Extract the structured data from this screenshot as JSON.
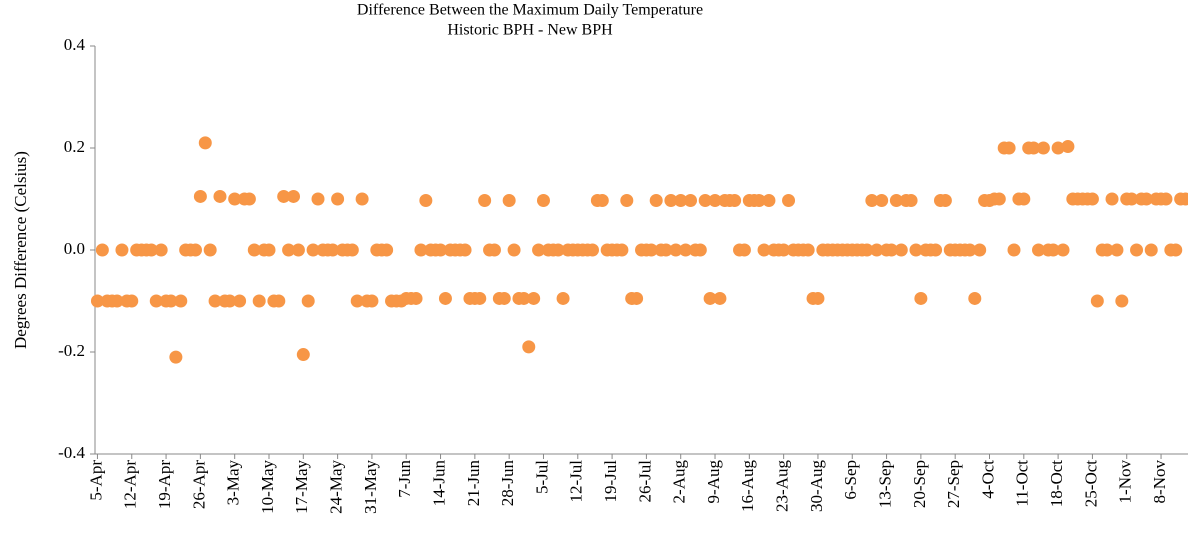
{
  "chart_data": {
    "type": "scatter",
    "title": "Difference Between the Maximum Daily Temperature",
    "subtitle": "Historic BPH - New BPH",
    "y_label": "Degrees Difference (Celsius)",
    "color": "#f79646",
    "ylim": [
      -0.4,
      0.4
    ],
    "yticks": [
      -0.4,
      -0.2,
      {
        "value": 0,
        "label": "0.0"
      },
      0.2,
      0.4
    ],
    "categories": [
      "5-Apr",
      null,
      null,
      null,
      null,
      null,
      null,
      "12-Apr",
      null,
      null,
      null,
      null,
      null,
      null,
      "19-Apr",
      null,
      null,
      null,
      null,
      null,
      null,
      "26-Apr",
      null,
      null,
      null,
      null,
      null,
      null,
      "3-May",
      null,
      null,
      null,
      null,
      null,
      null,
      "10-May",
      null,
      null,
      null,
      null,
      null,
      null,
      "17-May",
      null,
      null,
      null,
      null,
      null,
      null,
      "24-May",
      null,
      null,
      null,
      null,
      null,
      null,
      "31-May",
      null,
      null,
      null,
      null,
      null,
      null,
      "7-Jun",
      null,
      null,
      null,
      null,
      null,
      null,
      "14-Jun",
      null,
      null,
      null,
      null,
      null,
      null,
      "21-Jun",
      null,
      null,
      null,
      null,
      null,
      null,
      "28-Jun",
      null,
      null,
      null,
      null,
      null,
      null,
      "5-Jul",
      null,
      null,
      null,
      null,
      null,
      null,
      "12-Jul",
      null,
      null,
      null,
      null,
      null,
      null,
      "19-Jul",
      null,
      null,
      null,
      null,
      null,
      null,
      "26-Jul",
      null,
      null,
      null,
      null,
      null,
      null,
      "2-Aug",
      null,
      null,
      null,
      null,
      null,
      null,
      "9-Aug",
      null,
      null,
      null,
      null,
      null,
      null,
      "16-Aug",
      null,
      null,
      null,
      null,
      null,
      null,
      "23-Aug",
      null,
      null,
      null,
      null,
      null,
      null,
      "30-Aug",
      null,
      null,
      null,
      null,
      null,
      null,
      "6-Sep",
      null,
      null,
      null,
      null,
      null,
      null,
      "13-Sep",
      null,
      null,
      null,
      null,
      null,
      null,
      "20-Sep",
      null,
      null,
      null,
      null,
      null,
      null,
      "27-Sep",
      null,
      null,
      null,
      null,
      null,
      null,
      "4-Oct",
      null,
      null,
      null,
      null,
      null,
      null,
      "11-Oct",
      null,
      null,
      null,
      null,
      null,
      null,
      "18-Oct",
      null,
      null,
      null,
      null,
      null,
      null,
      "25-Oct",
      null,
      null,
      null,
      null,
      null,
      null,
      "1-Nov",
      null,
      null,
      null,
      null,
      null,
      null,
      "8-Nov",
      null,
      null,
      null,
      null,
      null
    ],
    "values": [
      -0.1,
      0,
      -0.1,
      -0.1,
      -0.1,
      0,
      -0.1,
      -0.1,
      0,
      0,
      0,
      0,
      -0.1,
      0,
      -0.1,
      -0.1,
      -0.21,
      -0.1,
      0,
      0,
      0,
      0.105,
      0.21,
      0,
      -0.1,
      0.105,
      -0.1,
      -0.1,
      0.1,
      -0.1,
      0.1,
      0.1,
      0,
      -0.1,
      0,
      0,
      -0.1,
      -0.1,
      0.105,
      0,
      0.105,
      0,
      -0.205,
      -0.1,
      0,
      0.1,
      0,
      0,
      0,
      0.1,
      0,
      0,
      0,
      -0.1,
      0.1,
      -0.1,
      -0.1,
      0,
      0,
      0,
      -0.1,
      -0.1,
      -0.1,
      -0.095,
      -0.095,
      -0.095,
      0,
      0.097,
      0,
      0,
      0,
      -0.095,
      0,
      0,
      0,
      0,
      -0.095,
      -0.095,
      -0.095,
      0.097,
      0,
      0,
      -0.095,
      -0.095,
      0.097,
      0,
      -0.095,
      -0.095,
      -0.19,
      -0.095,
      0,
      0.097,
      0,
      0,
      0,
      -0.095,
      0,
      0,
      0,
      0,
      0,
      0,
      0.097,
      0.097,
      0,
      0,
      0,
      0,
      0.097,
      -0.095,
      -0.095,
      0,
      0,
      0,
      0.097,
      0,
      0,
      0.097,
      0,
      0.097,
      0,
      0.097,
      0,
      0,
      0.097,
      -0.095,
      0.097,
      -0.095,
      0.097,
      0.097,
      0.097,
      0,
      0,
      0.097,
      0.097,
      0.097,
      0,
      0.097,
      0,
      0,
      0,
      0.097,
      0,
      0,
      0,
      0,
      -0.095,
      -0.095,
      0,
      0,
      0,
      0,
      0,
      0,
      0,
      0,
      0,
      0,
      0.097,
      0,
      0.097,
      0,
      0,
      0.097,
      0,
      0.097,
      0.097,
      0,
      -0.095,
      0,
      0,
      0,
      0.097,
      0.097,
      0,
      0,
      0,
      0,
      0,
      -0.095,
      0,
      0.097,
      0.097,
      0.1,
      0.1,
      0.2,
      0.2,
      0,
      0.1,
      0.1,
      0.2,
      0.2,
      0,
      0.2,
      0,
      0,
      0.2,
      0,
      0.203,
      0.1,
      0.1,
      0.1,
      0.1,
      0.1,
      -0.1,
      0,
      0,
      0.1,
      0,
      -0.1,
      0.1,
      0.1,
      0,
      0.1,
      0.1,
      0,
      0.1,
      0.1,
      0.1,
      0,
      0,
      0.1,
      0.1
    ]
  }
}
